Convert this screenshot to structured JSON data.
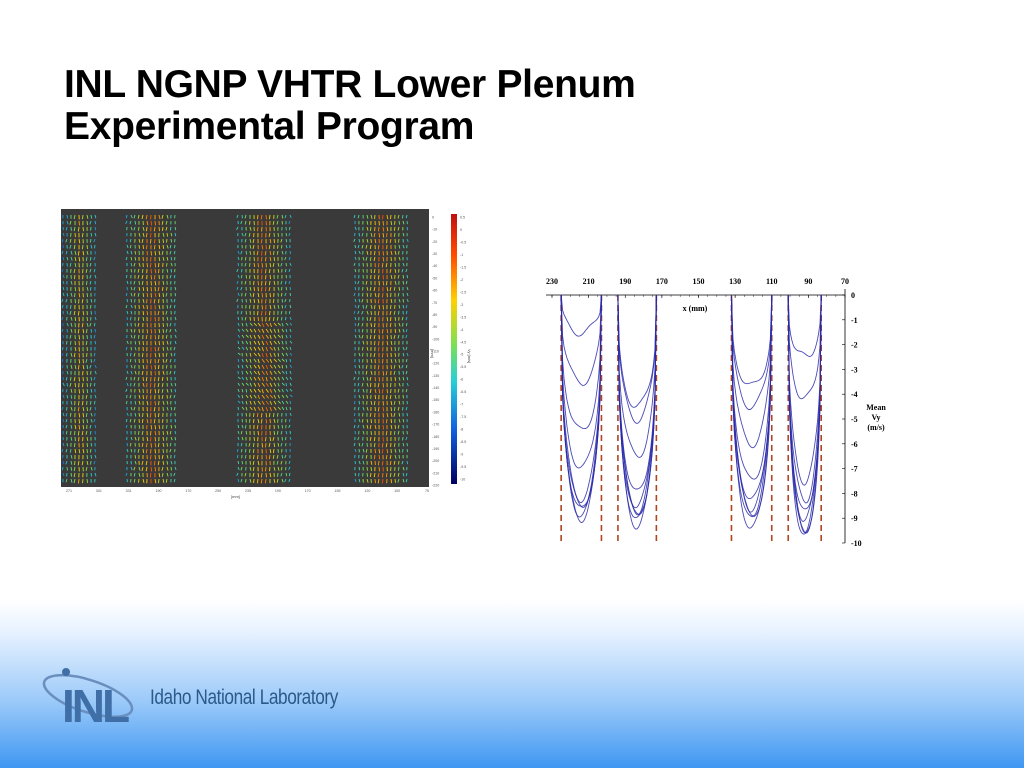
{
  "slide": {
    "title_line1": "INL NGNP VHTR Lower Plenum",
    "title_line2": "Experimental Program"
  },
  "logo": {
    "mark": "INL",
    "wordmark": "Idaho National Laboratory",
    "colors": {
      "mark": "#3f6fa6",
      "word": "#2b5a8a",
      "orbit": "#6a8fbf"
    }
  },
  "colors": {
    "footer_gradient_top": "#ffffff",
    "footer_gradient_bottom": "#3f97f2",
    "piv_background": "#3a3a3a",
    "profile_line": "#2a2aa8",
    "jet_edge_dash": "#b0451f"
  },
  "piv_figure": {
    "y_ticks": [
      "0",
      "-10",
      "-20",
      "-30",
      "-40",
      "-50",
      "-60",
      "-70",
      "-80",
      "-90",
      "-100",
      "-110",
      "-120",
      "-130",
      "-140",
      "-150",
      "-160",
      "-170",
      "-180",
      "-190",
      "-200",
      "-210",
      "-220"
    ],
    "x_ticks": [
      "271",
      "301",
      "331",
      "190",
      "170",
      "250",
      "235",
      "190",
      "170",
      "155",
      "120",
      "100",
      "75"
    ],
    "colorbar_ticks": [
      "0.5",
      "0",
      "-0.5",
      "-1",
      "-1.5",
      "-2",
      "-2.5",
      "-3",
      "-3.5",
      "-4",
      "-4.5",
      "-5",
      "-5.5",
      "-6",
      "-6.5",
      "-7",
      "-7.5",
      "-8",
      "-8.5",
      "-9",
      "-9.5",
      "-10"
    ],
    "axis_unit_y": "[mm]",
    "axis_unit_x": "[mm]",
    "colorbar_label": "Vy [m/s]"
  },
  "chart_data": {
    "type": "line",
    "title": "",
    "xlabel": "x (mm)",
    "ylabel": "Mean Vy (m/s)",
    "x_ticks": [
      230,
      210,
      190,
      170,
      150,
      130,
      110,
      90,
      70
    ],
    "y_ticks": [
      0,
      -1,
      -2,
      -3,
      -4,
      -5,
      -6,
      -7,
      -8,
      -9,
      -10
    ],
    "xlim": [
      230,
      70
    ],
    "ylim": [
      -10,
      0
    ],
    "grid": false,
    "jet_edges_dashed": [
      225,
      203,
      194,
      173,
      132,
      110,
      101,
      83
    ],
    "jets": [
      {
        "center": 214,
        "profiles_min_vy": [
          -9.0,
          -8.9,
          -8.7,
          -8.5,
          -8.2,
          -7.0,
          -5.5,
          -3.5,
          -1.5
        ]
      },
      {
        "center": 183.5,
        "profiles_min_vy": [
          -9.3,
          -9.1,
          -8.9,
          -8.7,
          -8.5,
          -8.0,
          -6.5,
          -5.0,
          -4.5
        ]
      },
      {
        "center": 121,
        "profiles_min_vy": [
          -9.4,
          -9.1,
          -8.8,
          -8.6,
          -8.3,
          -7.5,
          -6.0,
          -4.5,
          -3.7
        ]
      },
      {
        "center": 92,
        "profiles_min_vy": [
          -9.8,
          -9.6,
          -9.4,
          -9.1,
          -8.8,
          -8.3,
          -7.5,
          -4.2,
          -2.5
        ]
      }
    ]
  }
}
